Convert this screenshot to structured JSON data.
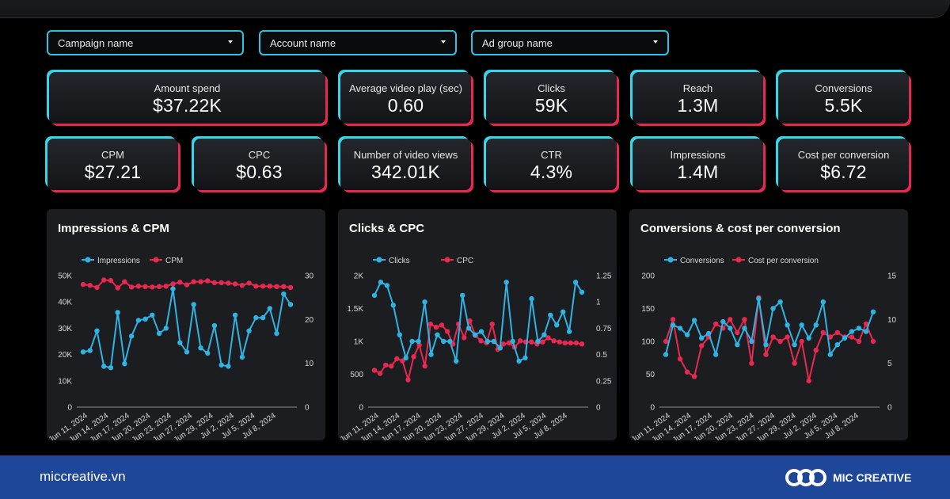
{
  "filters": [
    {
      "label": "Campaign name"
    },
    {
      "label": "Account name"
    },
    {
      "label": "Ad group name"
    }
  ],
  "kpis": [
    {
      "label": "Amount spend",
      "value": "$37.22K"
    },
    {
      "label": "Average video play (sec)",
      "value": "0.60"
    },
    {
      "label": "Clicks",
      "value": "59K"
    },
    {
      "label": "Reach",
      "value": "1.3M"
    },
    {
      "label": "Conversions",
      "value": "5.5K"
    },
    {
      "label": "CPM",
      "value": "$27.21"
    },
    {
      "label": "CPC",
      "value": "$0.63"
    },
    {
      "label": "Number of video views",
      "value": "342.01K"
    },
    {
      "label": "CTR",
      "value": "4.3%"
    },
    {
      "label": "Impressions",
      "value": "1.4M"
    },
    {
      "label": "Cost per conversion",
      "value": "$6.72"
    }
  ],
  "colors": {
    "series_a": "#2fb3e2",
    "series_b": "#e8294f",
    "kpi_left_glow": "#37d6e6",
    "kpi_right_glow": "#e8294f",
    "footer_bg": "#1e4699"
  },
  "chart_data": [
    {
      "type": "line",
      "title": "Impressions & CPM",
      "x_tick_labels": [
        "Jun 11, 2024",
        "Jun 14, 2024",
        "Jun 17, 2024",
        "Jun 20, 2024",
        "Jun 23, 2024",
        "Jun 27, 2024",
        "Jun 29, 2024",
        "Jul 2, 2024",
        "Jul 5, 2024",
        "Jul 8, 2024"
      ],
      "left_axis": {
        "ticks": [
          "0",
          "10K",
          "20K",
          "30K",
          "40K",
          "50K"
        ],
        "ylim": [
          0,
          50000
        ]
      },
      "right_axis": {
        "ticks": [
          "0",
          "10",
          "20",
          "30"
        ],
        "ylim": [
          0,
          30
        ]
      },
      "legend_position": "top-left",
      "grid": false,
      "series": [
        {
          "name": "Impressions",
          "axis": "left",
          "values": [
            21000,
            21500,
            29000,
            15500,
            15000,
            36000,
            16500,
            27000,
            33000,
            33500,
            35000,
            28000,
            30000,
            45000,
            24500,
            21000,
            39000,
            22500,
            20500,
            31000,
            16000,
            15500,
            35000,
            19000,
            29000,
            34000,
            34000,
            37500,
            28000,
            43000,
            39000
          ]
        },
        {
          "name": "CPM",
          "axis": "right",
          "values": [
            28.0,
            27.8,
            27.3,
            29.0,
            28.9,
            27.2,
            28.6,
            27.4,
            27.6,
            27.5,
            27.4,
            27.5,
            27.6,
            28.1,
            28.5,
            27.9,
            28.6,
            28.6,
            28.8,
            28.4,
            28.4,
            28.3,
            28.1,
            27.8,
            28.3,
            27.6,
            27.6,
            27.6,
            27.5,
            27.5,
            27.3
          ]
        }
      ]
    },
    {
      "type": "line",
      "title": "Clicks & CPC",
      "x_tick_labels": [
        "Jun 11, 2024",
        "Jun 14, 2024",
        "Jun 17, 2024",
        "Jun 20, 2024",
        "Jun 23, 2024",
        "Jun 27, 2024",
        "Jun 29, 2024",
        "Jul 2, 2024",
        "Jul 5, 2024",
        "Jul 8, 2024"
      ],
      "left_axis": {
        "ticks": [
          "0",
          "500",
          "1K",
          "1.5K",
          "2K"
        ],
        "ylim": [
          0,
          2000
        ]
      },
      "right_axis": {
        "ticks": [
          "0",
          "0.25",
          "0.5",
          "0.75",
          "1",
          "1.25"
        ],
        "ylim": [
          0,
          1.25
        ]
      },
      "legend_position": "top-left",
      "grid": false,
      "series": [
        {
          "name": "Clicks",
          "axis": "left",
          "values": [
            1700,
            1900,
            1850,
            1550,
            1100,
            750,
            1000,
            1000,
            1600,
            800,
            1100,
            1000,
            1000,
            700,
            1700,
            1200,
            1100,
            1150,
            1000,
            1000,
            900,
            1900,
            1000,
            700,
            750,
            1650,
            1000,
            1100,
            1400,
            1250,
            1450,
            1150,
            1900,
            1750
          ]
        },
        {
          "name": "CPC",
          "axis": "right",
          "values": [
            0.35,
            0.32,
            0.4,
            0.39,
            0.46,
            0.44,
            0.26,
            0.48,
            0.59,
            0.39,
            0.79,
            0.76,
            0.78,
            0.72,
            0.6,
            0.79,
            0.66,
            0.82,
            0.68,
            0.63,
            0.61,
            0.79,
            0.55,
            0.6,
            0.61,
            0.57,
            0.63,
            0.62,
            0.62,
            0.6,
            0.62,
            0.66,
            0.63,
            0.62,
            0.61,
            0.61,
            0.61,
            0.6
          ]
        }
      ]
    },
    {
      "type": "line",
      "title": "Conversions & cost per conversion",
      "x_tick_labels": [
        "Jun 11, 2024",
        "Jun 14, 2024",
        "Jun 17, 2024",
        "Jun 20, 2024",
        "Jun 23, 2024",
        "Jun 27, 2024",
        "Jun 29, 2024",
        "Jul 2, 2024",
        "Jul 5, 2024",
        "Jul 8, 2024"
      ],
      "left_axis": {
        "ticks": [
          "0",
          "50",
          "100",
          "150",
          "200"
        ],
        "ylim": [
          0,
          200
        ]
      },
      "right_axis": {
        "ticks": [
          "0",
          "5",
          "10",
          "15"
        ],
        "ylim": [
          0,
          15
        ]
      },
      "legend_position": "top-left",
      "grid": false,
      "series": [
        {
          "name": "Conversions",
          "axis": "left",
          "values": [
            80,
            125,
            120,
            110,
            132,
            105,
            112,
            80,
            130,
            120,
            95,
            120,
            100,
            165,
            95,
            150,
            160,
            125,
            95,
            125,
            105,
            125,
            160,
            80,
            95,
            105,
            115,
            120,
            115,
            145
          ]
        },
        {
          "name": "Cost per conversion",
          "axis": "right",
          "values": [
            7.5,
            10.0,
            5.5,
            4.0,
            3.5,
            7.0,
            8.0,
            9.5,
            9.0,
            10.0,
            8.5,
            10.0,
            5.0,
            12.5,
            6.0,
            8.0,
            7.5,
            8.0,
            5.0,
            7.5,
            3.0,
            6.5,
            8.5,
            8.0,
            8.5,
            8.0,
            8.0,
            7.5,
            9.5,
            7.5
          ]
        }
      ]
    }
  ],
  "footer": {
    "site": "miccreative.vn",
    "brand": "MIC CREATIVE",
    "logo_icon": "mic-creative-logo"
  }
}
